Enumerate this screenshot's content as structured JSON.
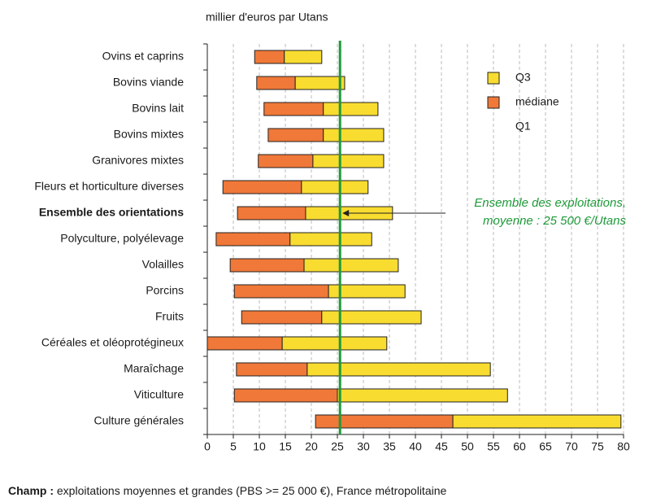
{
  "chart_data": {
    "type": "range-bar",
    "axis_label": "millier d'euros par Utans",
    "categories": [
      "Ovins et caprins",
      "Bovins viande",
      "Bovins lait",
      "Bovins mixtes",
      "Granivores mixtes",
      "Fleurs et horticulture diverses",
      "Ensemble des orientations",
      "Polyculture, polyélevage",
      "Volailles",
      "Porcins",
      "Fruits",
      "Céréales et oléoprotégineux",
      "Maraîchage",
      "Viticulture",
      "Culture générales"
    ],
    "highlight_index": 6,
    "series": [
      {
        "name": "Q3",
        "color": "#f8dc30",
        "values": [
          22.0,
          26.4,
          32.8,
          33.9,
          33.9,
          30.9,
          35.6,
          31.6,
          36.7,
          38.0,
          41.1,
          34.5,
          54.4,
          57.7,
          79.5
        ]
      },
      {
        "name": "médiane",
        "color": "#f07838",
        "values": [
          14.8,
          16.9,
          22.3,
          22.3,
          20.3,
          18.1,
          18.9,
          15.9,
          18.6,
          23.3,
          22.0,
          14.4,
          19.2,
          25.0,
          47.2
        ]
      },
      {
        "name": "Q1",
        "values": [
          9.1,
          9.5,
          10.9,
          11.7,
          9.8,
          3.0,
          5.8,
          1.7,
          4.4,
          5.2,
          6.6,
          0,
          5.6,
          5.2,
          20.8
        ]
      }
    ],
    "mean": 25.5,
    "mean_color": "#1f9a3a",
    "annotation": [
      "Ensemble des exploitations,",
      "moyenne : 25 500 €/Utans"
    ],
    "xlim": [
      0,
      80
    ],
    "xticks": [
      0,
      5,
      10,
      15,
      20,
      25,
      30,
      35,
      40,
      45,
      50,
      55,
      60,
      65,
      70,
      75,
      80
    ],
    "grid": true,
    "footnote_label": "Champ :",
    "footnote_text": "exploitations moyennes et grandes (PBS >= 25 000 €), France métropolitaine"
  }
}
